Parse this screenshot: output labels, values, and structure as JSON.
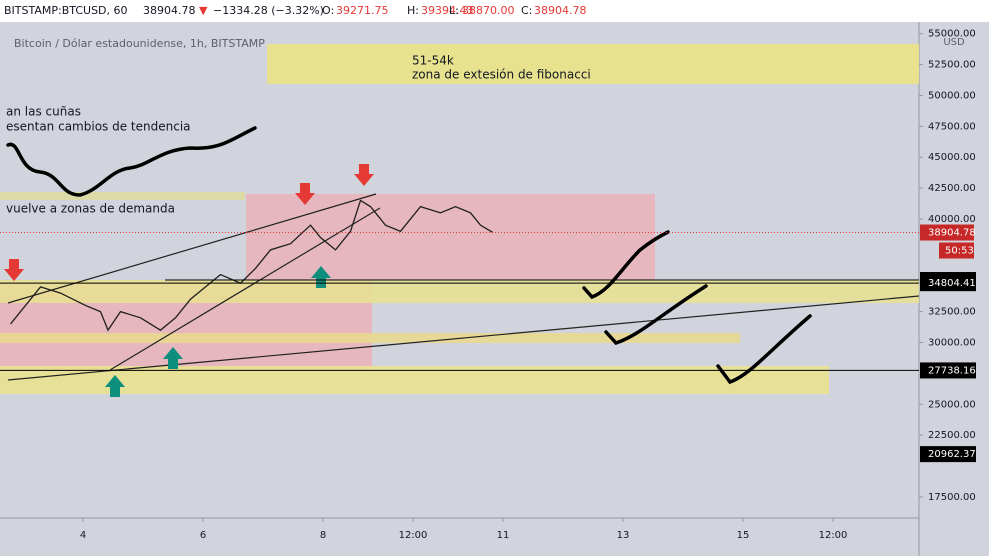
{
  "header": {
    "symbol": "BITSTAMP:BTCUSD, 60",
    "price": "38904.78",
    "arrow": "▼",
    "change": "−1334.28 (−3.32%)",
    "o_label": "O:",
    "o": "39271.75",
    "h_label": "H:",
    "h": "39394.43",
    "l_label": "L:",
    "l": "38870.00",
    "c_label": "C:",
    "c": "38904.78"
  },
  "chart_data": {
    "type": "line",
    "subtitle": "Bitcoin / Dólar estadounidense, 1h, BITSTAMP",
    "currency": "USD",
    "annotations": [
      "51-54k",
      "zona de extesión de fibonacci",
      "an las cuñas",
      "esentan cambios de tendencia",
      "vuelve a zonas de demanda"
    ],
    "x": [
      -5,
      7,
      15,
      25,
      31,
      34,
      39,
      47,
      55,
      61,
      67,
      73,
      79,
      87,
      93,
      99,
      107,
      115,
      119,
      125,
      131,
      135,
      139,
      145,
      151,
      159,
      167,
      173,
      179,
      183,
      188
    ],
    "series": [
      {
        "name": "BTCUSD",
        "color": "#1e1e1e",
        "values": [
          31500,
          34500,
          34000,
          33000,
          32500,
          31000,
          32500,
          32000,
          31000,
          32000,
          33500,
          34500,
          35500,
          34800,
          36000,
          37500,
          38000,
          39500,
          38500,
          37500,
          39000,
          41500,
          41000,
          39500,
          39000,
          41000,
          40500,
          41000,
          40500,
          39500,
          38904.78
        ]
      }
    ],
    "last_price": 38904.78,
    "countdown": "50:53",
    "levels": [
      35059.17,
      34804.41,
      27738.16,
      20962.37
    ],
    "xlim": [
      -9.2,
      358.4
    ],
    "xticks": [
      {
        "value": 24,
        "label": "4"
      },
      {
        "value": 72,
        "label": "6"
      },
      {
        "value": 120,
        "label": "8"
      },
      {
        "value": 156,
        "label": "12:00"
      },
      {
        "value": 192,
        "label": "11"
      },
      {
        "value": 240,
        "label": "13"
      },
      {
        "value": 288,
        "label": "15"
      },
      {
        "value": 324,
        "label": "12:00"
      }
    ],
    "ylim": [
      15790,
      55950
    ],
    "yticks": [
      {
        "value": 17500,
        "label": "17500.00"
      },
      {
        "value": 22500,
        "label": "22500.00"
      },
      {
        "value": 25000,
        "label": "25000.00"
      },
      {
        "value": 30000,
        "label": "30000.00"
      },
      {
        "value": 32500,
        "label": "32500.00"
      },
      {
        "value": 40000,
        "label": "40000.00"
      },
      {
        "value": 42500,
        "label": "42500.00"
      },
      {
        "value": 45000,
        "label": "45000.00"
      },
      {
        "value": 47500,
        "label": "47500.00"
      },
      {
        "value": 50000,
        "label": "50000.00"
      },
      {
        "value": 52500,
        "label": "52500.00"
      },
      {
        "value": 55000,
        "label": "55000.00"
      }
    ]
  }
}
